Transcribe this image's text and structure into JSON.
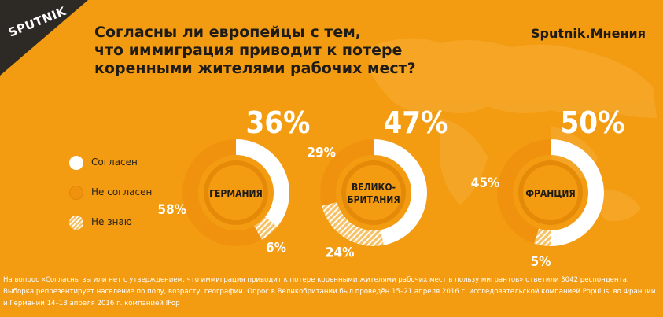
{
  "logo": {
    "text": "SPUTNIK"
  },
  "brand": {
    "text": "Sputnik.Мнения"
  },
  "title": {
    "line1": "Согласны ли европейцы с тем,",
    "line2": "что иммиграция приводит к потере",
    "line3": "коренными жителями рабочих мест?"
  },
  "legend": {
    "agree": "Согласен",
    "disagree": "Не согласен",
    "unknown": "Не знаю"
  },
  "colors": {
    "background": "#f39c12",
    "agree": "#ffffff",
    "disagree": "#f0920e",
    "unknown_stripe": "#f6c268",
    "text_dark": "#1f1b16"
  },
  "chart_data": {
    "type": "pie",
    "title": "Согласны ли европейцы с тем, что иммиграция приводит к потере коренными жителями рабочих мест?",
    "categories": [
      "Согласен",
      "Не согласен",
      "Не знаю"
    ],
    "charts": [
      {
        "country": "ГЕРМАНИЯ",
        "values": {
          "agree": 36,
          "disagree": 58,
          "unknown": 6
        },
        "labels": {
          "agree": "36%",
          "disagree": "58%",
          "unknown": "6%"
        }
      },
      {
        "country": "ВЕЛИКО-\nБРИТАНИЯ",
        "country_lines": [
          "ВЕЛИКО-",
          "БРИТАНИЯ"
        ],
        "values": {
          "agree": 47,
          "disagree": 29,
          "unknown": 24
        },
        "labels": {
          "agree": "47%",
          "disagree": "29%",
          "unknown": "24%"
        }
      },
      {
        "country": "ФРАНЦИЯ",
        "values": {
          "agree": 50,
          "disagree": 45,
          "unknown": 5
        },
        "labels": {
          "agree": "50%",
          "disagree": "45%",
          "unknown": "5%"
        }
      }
    ]
  },
  "footnote": {
    "line1": "На вопрос «Согласны вы или нет с утверждением, что иммиграция приводит к потере коренными жителями рабочих мест в пользу мигрантов» ответили 3042 респондента.",
    "line2": "Выборка репрезентирует население по полу, возрасту, географии. Опрос в Великобритании был проведён 15–21 апреля 2016 г. исследовательской компанией Populus, во Франции",
    "line3": "и Германии 14–18 апреля 2016 г. компанией IFop"
  }
}
